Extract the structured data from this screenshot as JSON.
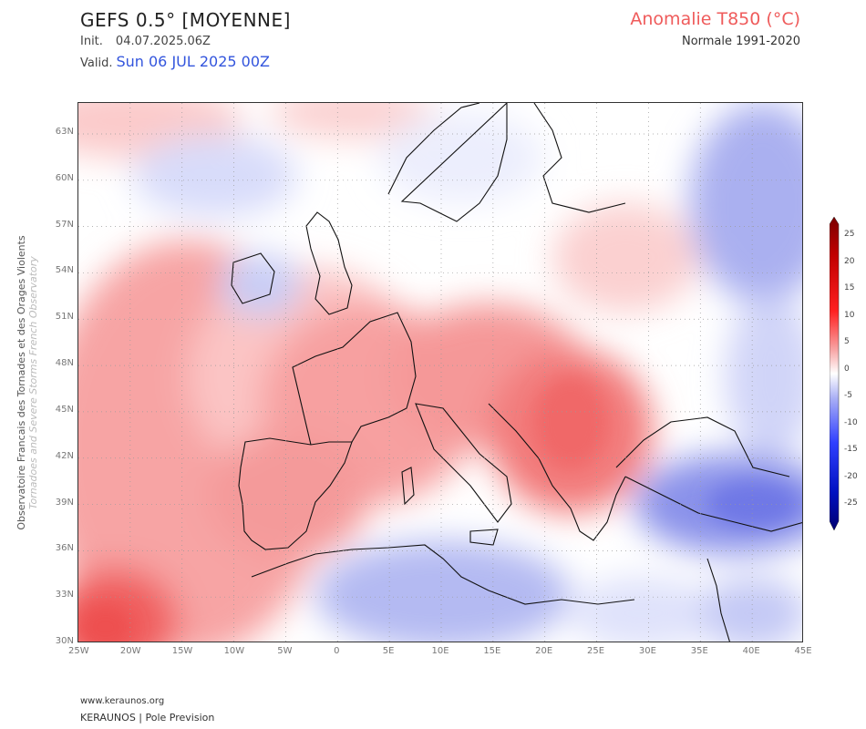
{
  "header": {
    "model": "GEFS 0.5° [MOYENNE]",
    "init_label": "Init.",
    "init_value": "04.07.2025.06Z",
    "valid_label": "Valid.",
    "valid_value": "Sun 06 JUL 2025 00Z",
    "variable": "Anomalie T850 (°C)",
    "normal": "Normale 1991-2020"
  },
  "side_credit": {
    "line1": "Observatoire Francais des Tornades et des Orages Violents",
    "line2": "Tornadoes and Severe Storms French Observatory"
  },
  "map": {
    "lon_ticks": [
      "25W",
      "20W",
      "15W",
      "10W",
      "5W",
      "0",
      "5E",
      "10E",
      "15E",
      "20E",
      "25E",
      "30E",
      "35E",
      "40E",
      "45E"
    ],
    "lat_ticks": [
      "63N",
      "60N",
      "57N",
      "54N",
      "51N",
      "48N",
      "45N",
      "42N",
      "39N",
      "36N",
      "33N",
      "30N"
    ],
    "colors": {
      "warm_strong": "#f26a6a",
      "warm": "#f9b0b0",
      "warm_light": "#fde0e0",
      "neutral": "#ffffff",
      "cool_light": "#e3e6fb",
      "cool": "#aeb4f2",
      "cool_strong": "#6f78e6",
      "land_border": "#111111",
      "grid": "#9a9a9a"
    }
  },
  "colorbar": {
    "labels": [
      "25",
      "20",
      "15",
      "10",
      "5",
      "0",
      "-5",
      "-10",
      "-15",
      "-20",
      "-25"
    ]
  },
  "footer": {
    "url": "www.keraunos.org",
    "brand": "KERAUNOS | Pole Prevision"
  }
}
